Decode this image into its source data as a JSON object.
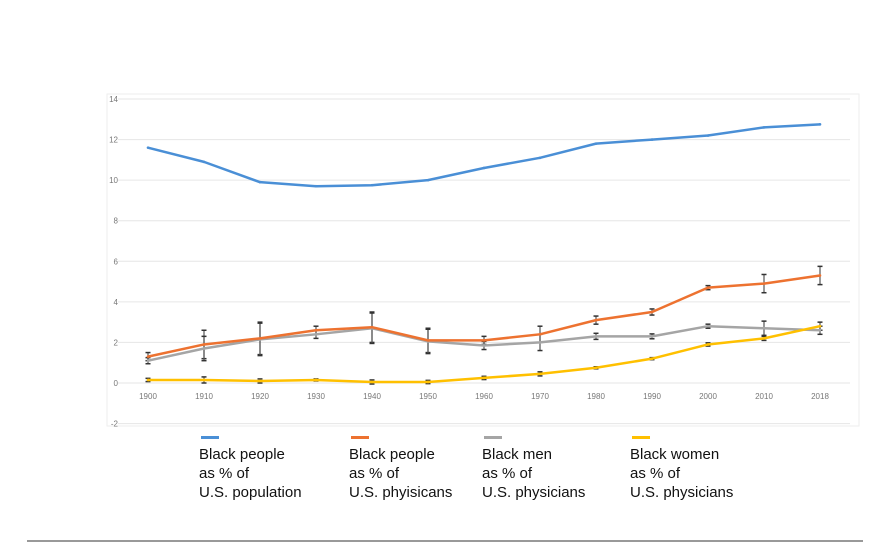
{
  "chart_data": {
    "type": "line",
    "title": "",
    "xlabel": "",
    "ylabel": "",
    "categories": [
      "1900",
      "1910",
      "1920",
      "1930",
      "1940",
      "1950",
      "1960",
      "1970",
      "1980",
      "1990",
      "2000",
      "2010",
      "2018"
    ],
    "ylim": [
      -2,
      14
    ],
    "yticks": [
      "14",
      "12",
      "10",
      "8",
      "6",
      "4",
      "2",
      "0",
      "-2"
    ],
    "grid": true,
    "legend_position": "bottom",
    "series": [
      {
        "name": [
          "Black people",
          "as % of",
          "U.S. population"
        ],
        "color": "#4a8fd6",
        "values": [
          11.6,
          10.9,
          9.9,
          9.7,
          9.75,
          10.0,
          10.6,
          11.1,
          11.8,
          12.0,
          12.2,
          12.6,
          12.75
        ],
        "errors": null
      },
      {
        "name": [
          "Black people",
          "as % of",
          "U.S. phyisicans"
        ],
        "color": "#ed7230",
        "values": [
          1.3,
          1.9,
          2.2,
          2.6,
          2.75,
          2.1,
          2.1,
          2.4,
          3.1,
          3.5,
          4.7,
          4.9,
          5.3
        ],
        "errors": [
          0.2,
          0.7,
          0.8,
          0.2,
          0.75,
          0.6,
          0.2,
          0.4,
          0.2,
          0.15,
          0.1,
          0.45,
          0.45
        ]
      },
      {
        "name": [
          "Black men",
          "as % of",
          "U.S. physicians"
        ],
        "color": "#a5a5a5",
        "values": [
          1.1,
          1.7,
          2.15,
          2.4,
          2.7,
          2.05,
          1.85,
          2.0,
          2.3,
          2.3,
          2.8,
          2.7,
          2.6
        ],
        "errors": [
          0.15,
          0.6,
          0.8,
          0.2,
          0.75,
          0.6,
          0.2,
          0.4,
          0.15,
          0.12,
          0.1,
          0.35,
          0.2
        ]
      },
      {
        "name": [
          "Black women",
          "as % of",
          "U.S. physicians"
        ],
        "color": "#ffc000",
        "values": [
          0.15,
          0.15,
          0.1,
          0.15,
          0.05,
          0.05,
          0.25,
          0.45,
          0.75,
          1.2,
          1.9,
          2.2,
          2.8
        ],
        "errors": [
          0.08,
          0.15,
          0.1,
          0.05,
          0.1,
          0.08,
          0.08,
          0.1,
          0.05,
          0.05,
          0.08,
          0.1,
          0.2
        ]
      }
    ]
  }
}
